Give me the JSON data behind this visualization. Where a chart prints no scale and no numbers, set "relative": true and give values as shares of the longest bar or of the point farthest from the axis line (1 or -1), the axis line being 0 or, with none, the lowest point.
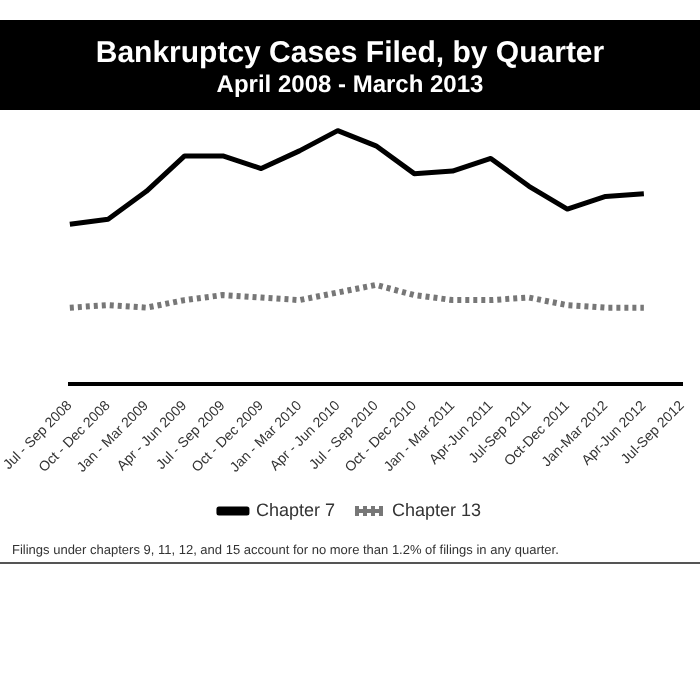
{
  "chart_data": {
    "type": "line",
    "title": "Bankruptcy Cases Filed, by Quarter",
    "subtitle": "April 2008 - March 2013",
    "relative": true,
    "categories": [
      "Jul - Sep 2008",
      "Oct - Dec 2008",
      "Jan - Mar 2009",
      "Apr - Jun 2009",
      "Jul - Sep 2009",
      "Oct - Dec 2009",
      "Jan - Mar 2010",
      "Apr - Jun 2010",
      "Jul - Sep 2010",
      "Oct - Dec 2010",
      "Jan - Mar 2011",
      "Apr-Jun 2011",
      "Jul-Sep 2011",
      "Oct-Dec 2011",
      "Jan-Mar 2012",
      "Apr-Jun 2012",
      "Jul-Sep 2012"
    ],
    "series": [
      {
        "name": "Chapter 7",
        "color": "#000000",
        "line_style": "solid",
        "values": [
          0.63,
          0.65,
          0.76,
          0.9,
          0.9,
          0.85,
          0.92,
          1,
          0.94,
          0.83,
          0.84,
          0.89,
          0.78,
          0.69,
          0.74,
          0.75,
          null
        ]
      },
      {
        "name": "Chapter 13",
        "color": "#777777",
        "line_style": "dotted",
        "values": [
          0.3,
          0.31,
          0.3,
          0.33,
          0.35,
          0.34,
          0.33,
          0.36,
          0.39,
          0.35,
          0.33,
          0.33,
          0.34,
          0.31,
          0.3,
          0.3,
          null
        ]
      }
    ],
    "annotations": [
      "Filings under chapters 9, 11, 12, and 15 account for no more than 1.2% of filings in any quarter."
    ],
    "legend": "bottom",
    "grid": false,
    "marker": "none"
  }
}
